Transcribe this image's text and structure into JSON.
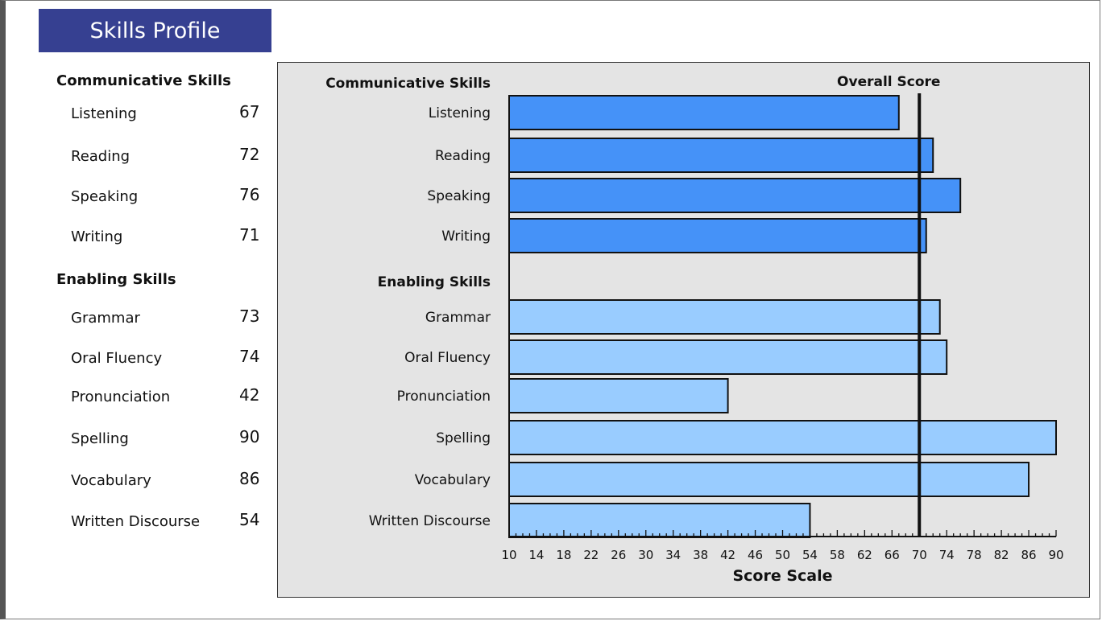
{
  "title": "Skills Profile",
  "groups": [
    {
      "name": "Communicative Skills",
      "items": [
        {
          "label": "Listening",
          "score": 67
        },
        {
          "label": "Reading",
          "score": 72
        },
        {
          "label": "Speaking",
          "score": 76
        },
        {
          "label": "Writing",
          "score": 71
        }
      ]
    },
    {
      "name": "Enabling Skills",
      "items": [
        {
          "label": "Grammar",
          "score": 73
        },
        {
          "label": "Oral Fluency",
          "score": 74
        },
        {
          "label": "Pronunciation",
          "score": 42
        },
        {
          "label": "Spelling",
          "score": 90
        },
        {
          "label": "Vocabulary",
          "score": 86
        },
        {
          "label": "Written Discourse",
          "score": 54
        }
      ]
    }
  ],
  "chart_data": {
    "type": "bar",
    "orientation": "horizontal",
    "categories": [
      "Listening",
      "Reading",
      "Speaking",
      "Writing",
      "Grammar",
      "Oral Fluency",
      "Pronunciation",
      "Spelling",
      "Vocabulary",
      "Written Discourse"
    ],
    "values": [
      67,
      72,
      76,
      71,
      73,
      74,
      42,
      90,
      86,
      54
    ],
    "series_groups": [
      "Communicative Skills",
      "Communicative Skills",
      "Communicative Skills",
      "Communicative Skills",
      "Enabling Skills",
      "Enabling Skills",
      "Enabling Skills",
      "Enabling Skills",
      "Enabling Skills",
      "Enabling Skills"
    ],
    "xlabel": "Score Scale",
    "xlim": [
      10,
      90
    ],
    "xticks": [
      10,
      14,
      18,
      22,
      26,
      30,
      34,
      38,
      42,
      46,
      50,
      54,
      58,
      62,
      66,
      70,
      74,
      78,
      82,
      86,
      90
    ],
    "reference_line": {
      "label": "Overall Score",
      "value": 70
    },
    "colors": {
      "Communicative Skills": "#4592f8",
      "Enabling Skills": "#99ccff"
    }
  }
}
